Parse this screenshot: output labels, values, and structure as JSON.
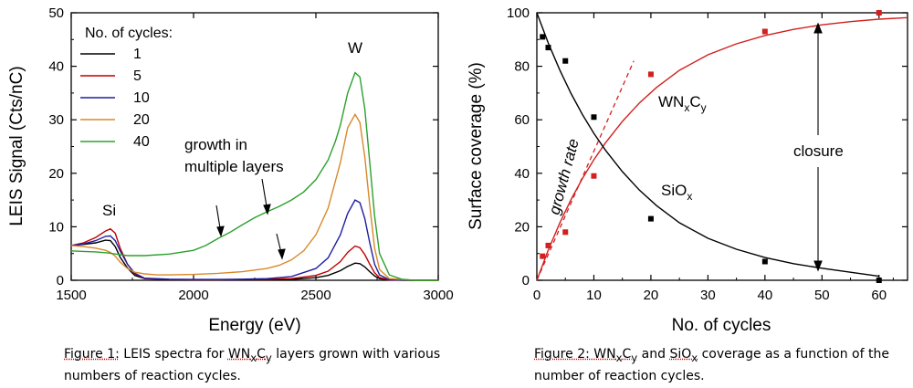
{
  "chart_data": [
    {
      "type": "line",
      "xlabel": "Energy (eV)",
      "ylabel": "LEIS Signal (Cts/nC)",
      "xlim": [
        1500,
        3000
      ],
      "ylim": [
        0,
        50
      ],
      "xticks": [
        1500,
        2000,
        2500,
        3000
      ],
      "yticks": [
        0,
        10,
        20,
        30,
        40,
        50
      ],
      "legend_title": "No. of cycles:",
      "legend_position": "top-left",
      "grid": false,
      "series": [
        {
          "name": "1",
          "color": "#000000",
          "x": [
            1500,
            1550,
            1600,
            1640,
            1660,
            1680,
            1700,
            1730,
            1760,
            1800,
            1900,
            2000,
            2100,
            2200,
            2300,
            2400,
            2500,
            2550,
            2600,
            2630,
            2660,
            2680,
            2700,
            2720,
            2740,
            2760,
            2800,
            2900,
            3000
          ],
          "y": [
            6.5,
            6.7,
            7.0,
            7.5,
            7.4,
            6.3,
            4.3,
            2.3,
            0.9,
            0.3,
            0.15,
            0.1,
            0.1,
            0.1,
            0.1,
            0.15,
            0.5,
            0.9,
            1.8,
            2.6,
            3.2,
            3.1,
            2.5,
            1.6,
            0.8,
            0.3,
            0.05,
            0,
            0
          ]
        },
        {
          "name": "5",
          "color": "#c00000",
          "x": [
            1500,
            1550,
            1600,
            1640,
            1660,
            1680,
            1700,
            1730,
            1760,
            1800,
            1900,
            2000,
            2100,
            2200,
            2300,
            2400,
            2500,
            2550,
            2600,
            2630,
            2660,
            2680,
            2700,
            2720,
            2740,
            2760,
            2800,
            2900,
            3000
          ],
          "y": [
            6.5,
            7.0,
            8.0,
            9.2,
            9.6,
            8.8,
            6.0,
            3.0,
            1.2,
            0.3,
            0.15,
            0.1,
            0.1,
            0.15,
            0.2,
            0.3,
            0.9,
            1.7,
            3.5,
            5.2,
            6.4,
            6.1,
            4.8,
            3.0,
            1.4,
            0.5,
            0.05,
            0,
            0
          ]
        },
        {
          "name": "10",
          "color": "#1f1fa0",
          "x": [
            1500,
            1550,
            1600,
            1640,
            1660,
            1680,
            1700,
            1730,
            1760,
            1800,
            1900,
            2000,
            2100,
            2200,
            2300,
            2400,
            2500,
            2550,
            2600,
            2630,
            2660,
            2680,
            2700,
            2720,
            2740,
            2760,
            2800,
            2900,
            3000
          ],
          "y": [
            6.5,
            6.8,
            7.4,
            8.2,
            8.3,
            7.4,
            5.5,
            3.0,
            1.3,
            0.4,
            0.2,
            0.15,
            0.15,
            0.2,
            0.3,
            0.7,
            2.2,
            4.2,
            8.5,
            12.5,
            15.0,
            14.5,
            11.5,
            7.0,
            3.0,
            1.0,
            0.1,
            0,
            0
          ]
        },
        {
          "name": "20",
          "color": "#d9882a",
          "x": [
            1500,
            1550,
            1600,
            1640,
            1660,
            1680,
            1700,
            1730,
            1760,
            1800,
            1850,
            1900,
            2000,
            2100,
            2200,
            2300,
            2350,
            2400,
            2450,
            2500,
            2550,
            2600,
            2630,
            2660,
            2680,
            2700,
            2720,
            2740,
            2760,
            2800,
            2900,
            3000
          ],
          "y": [
            6.5,
            6.3,
            6.0,
            5.6,
            5.2,
            4.5,
            3.4,
            2.2,
            1.5,
            1.2,
            1.0,
            1.0,
            1.1,
            1.3,
            1.6,
            2.2,
            2.8,
            3.8,
            5.5,
            8.5,
            13.5,
            22.0,
            28.5,
            31.0,
            29.5,
            23.0,
            14.0,
            6.0,
            2.0,
            0.3,
            0,
            0
          ]
        },
        {
          "name": "40",
          "color": "#2ca02c",
          "x": [
            1500,
            1550,
            1600,
            1650,
            1700,
            1730,
            1760,
            1800,
            1900,
            2000,
            2050,
            2100,
            2150,
            2200,
            2250,
            2300,
            2350,
            2400,
            2450,
            2500,
            2550,
            2580,
            2600,
            2630,
            2660,
            2680,
            2700,
            2720,
            2740,
            2760,
            2800,
            2850,
            2900,
            3000
          ],
          "y": [
            5.5,
            5.4,
            5.3,
            5.1,
            4.8,
            4.6,
            4.6,
            4.6,
            4.9,
            5.6,
            6.5,
            7.8,
            9.0,
            10.4,
            11.7,
            12.8,
            13.8,
            15.0,
            16.5,
            18.8,
            22.5,
            26.0,
            29.0,
            35.0,
            38.8,
            38.0,
            32.0,
            22.0,
            12.0,
            5.0,
            1.0,
            0.2,
            0,
            0
          ]
        }
      ],
      "annotations": [
        {
          "text": "Si"
        },
        {
          "text": "W"
        },
        {
          "text": "growth in"
        },
        {
          "text": "multiple layers"
        }
      ]
    },
    {
      "type": "scatter",
      "xlabel": "No. of cycles",
      "ylabel": "Surface coverage (%)",
      "xlim": [
        0,
        65
      ],
      "ylim": [
        0,
        100
      ],
      "xticks": [
        0,
        10,
        20,
        30,
        40,
        50,
        60
      ],
      "yticks": [
        0,
        20,
        40,
        60,
        80,
        100
      ],
      "grid": false,
      "series": [
        {
          "label_main": "WN",
          "label_sub1": "x",
          "label_mid": "C",
          "label_sub2": "y",
          "color": "#d21f1f",
          "points": {
            "x": [
              1,
              2,
              5,
              10,
              20,
              40,
              60
            ],
            "y": [
              9,
              13,
              18,
              39,
              77,
              93,
              100
            ]
          },
          "fit": {
            "model": "saturating exponential",
            "x": [
              0,
              2,
              4,
              6,
              8,
              10,
              12,
              15,
              18,
              21,
              25,
              30,
              35,
              40,
              45,
              50,
              55,
              60,
              65
            ],
            "y": [
              0,
              11.3,
              21.3,
              30.2,
              38.1,
              45.1,
              51.3,
              59.4,
              66.3,
              72.1,
              78.5,
              84.3,
              88.4,
              91.5,
              93.8,
              95.5,
              96.7,
              97.6,
              98.2
            ]
          }
        },
        {
          "label_main": "SiO",
          "label_sub1": "x",
          "color": "#000000",
          "points": {
            "x": [
              1,
              2,
              5,
              10,
              20,
              40,
              60
            ],
            "y": [
              91,
              87,
              82,
              61,
              23,
              7,
              0
            ]
          },
          "fit": {
            "model": "decaying exponential",
            "x": [
              0,
              2,
              4,
              6,
              8,
              10,
              12,
              15,
              18,
              21,
              25,
              30,
              35,
              40,
              45,
              50,
              55,
              60
            ],
            "y": [
              100,
              88.7,
              78.7,
              69.8,
              61.9,
              54.9,
              48.7,
              40.6,
              33.7,
              27.9,
              21.5,
              15.7,
              11.6,
              8.5,
              6.2,
              4.5,
              3.0,
              1.5
            ]
          }
        }
      ],
      "growth_rate_line": {
        "x": [
          0,
          17
        ],
        "y": [
          0,
          82
        ]
      },
      "annotations": [
        {
          "text": "growth rate"
        },
        {
          "text": "closure"
        }
      ]
    }
  ],
  "captions": {
    "fig1": {
      "label": "Figure 1:",
      "pre": " LEIS spectra for ",
      "main": "WN",
      "s1": "x",
      "mid": "C",
      "s2": "y",
      "post": " layers grown with various numbers of reaction cycles."
    },
    "fig2": {
      "label": "Figure 2:",
      "main1": " WN",
      "s1": "x",
      "mid": "C",
      "s2": "y",
      "and": " and ",
      "main2": "SiO",
      "s3": "x",
      "post": " coverage as a function of the number of reaction cycles."
    }
  }
}
